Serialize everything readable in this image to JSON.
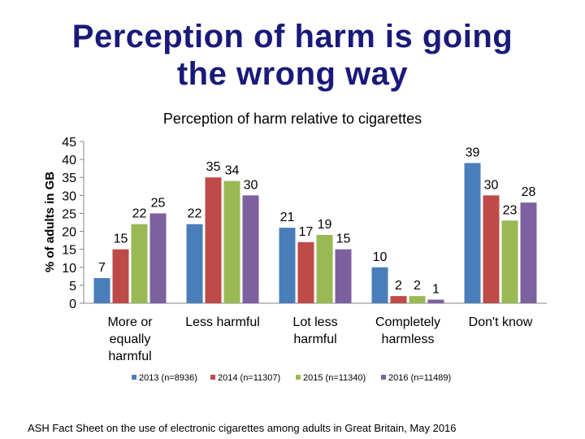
{
  "slide": {
    "title_line1": "Perception of harm is going",
    "title_line2": "the wrong way",
    "footnote": "ASH Fact Sheet on the use of electronic cigarettes among adults in Great Britain, May 2016"
  },
  "chart_data": {
    "type": "bar",
    "title": "Perception of harm relative to cigarettes",
    "ylabel": "% of adults in GB",
    "xlabel": "",
    "ylim": [
      0,
      45
    ],
    "yticks": [
      0,
      5,
      10,
      15,
      20,
      25,
      30,
      35,
      40,
      45
    ],
    "grid": false,
    "legend_position": "bottom",
    "categories": [
      "More or equally harmful",
      "Less harmful",
      "Lot less harmful",
      "Completely harmless",
      "Don't know"
    ],
    "category_lines": [
      [
        "More or",
        "equally",
        "harmful"
      ],
      [
        "Less harmful"
      ],
      [
        "Lot less",
        "harmful"
      ],
      [
        "Completely",
        "harmless"
      ],
      [
        "Don't know"
      ]
    ],
    "series": [
      {
        "name": "2013 (n=8936)",
        "color": "#4a7ebb",
        "values": [
          7,
          22,
          21,
          10,
          39
        ]
      },
      {
        "name": "2014 (n=11307)",
        "color": "#be4b48",
        "values": [
          15,
          35,
          17,
          2,
          30
        ]
      },
      {
        "name": "2015 (n=11340)",
        "color": "#98b954",
        "values": [
          22,
          34,
          19,
          2,
          23
        ]
      },
      {
        "name": "2016 (n=11489)",
        "color": "#7d60a0",
        "values": [
          25,
          30,
          15,
          1,
          28
        ]
      }
    ]
  }
}
